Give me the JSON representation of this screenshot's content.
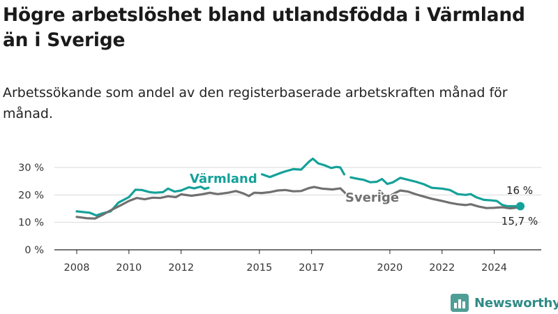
{
  "title": "Högre arbetslöshet bland utlandsfödda i Värmland än i Sverige",
  "subtitle": "Arbetssökande som andel av den registerbaserade arbetskraften månad för månad.",
  "brand": "Newsworthy",
  "colors": {
    "varmland": "#14a199",
    "sverige": "#707070",
    "grid": "#d9d9d9",
    "axis": "#222222"
  },
  "icons": {
    "brand": "bar-chart-logo-icon"
  },
  "chart_data": {
    "type": "line",
    "title": "Högre arbetslöshet bland utlandsfödda i Värmland än i Sverige",
    "subtitle": "Arbetssökande som andel av den registerbaserade arbetskraften månad för månad.",
    "xlabel": "",
    "ylabel": "",
    "x_ticks": [
      "2008",
      "2010",
      "2012",
      "2015",
      "2017",
      "2020",
      "2022",
      "2024"
    ],
    "y_ticks": [
      "0 %",
      "10 %",
      "20 %",
      "30 %"
    ],
    "ylim": [
      0,
      30
    ],
    "grid": true,
    "legend": "inline labels",
    "series": [
      {
        "name": "Värmland",
        "color": "#14a199",
        "end_label": "16 %",
        "points": [
          [
            2008.0,
            14.0
          ],
          [
            2008.5,
            13.5
          ],
          [
            2008.75,
            12.5
          ],
          [
            2009.0,
            13.3
          ],
          [
            2009.3,
            14.0
          ],
          [
            2009.6,
            17.2
          ],
          [
            2010.0,
            19.2
          ],
          [
            2010.25,
            21.9
          ],
          [
            2010.5,
            21.8
          ],
          [
            2010.8,
            21.0
          ],
          [
            2011.0,
            20.8
          ],
          [
            2011.3,
            21.0
          ],
          [
            2011.5,
            22.3
          ],
          [
            2011.75,
            21.2
          ],
          [
            2012.0,
            21.6
          ],
          [
            2012.3,
            22.8
          ],
          [
            2012.5,
            22.4
          ],
          [
            2012.75,
            23.0
          ],
          [
            2012.9,
            22.2
          ],
          [
            2013.05,
            22.6
          ]
        ],
        "points_2": [
          [
            2015.1,
            27.5
          ],
          [
            2015.4,
            26.5
          ],
          [
            2015.75,
            27.8
          ],
          [
            2016.0,
            28.6
          ],
          [
            2016.3,
            29.4
          ],
          [
            2016.6,
            29.2
          ],
          [
            2016.9,
            32.1
          ],
          [
            2017.05,
            33.2
          ],
          [
            2017.25,
            31.5
          ],
          [
            2017.5,
            30.8
          ],
          [
            2017.75,
            29.8
          ],
          [
            2017.95,
            30.2
          ],
          [
            2018.1,
            30.0
          ],
          [
            2018.25,
            27.5
          ]
        ],
        "points_3": [
          [
            2018.5,
            26.4
          ],
          [
            2018.8,
            25.8
          ],
          [
            2019.0,
            25.5
          ],
          [
            2019.25,
            24.6
          ],
          [
            2019.5,
            24.8
          ],
          [
            2019.7,
            25.8
          ],
          [
            2019.9,
            24.0
          ],
          [
            2020.1,
            24.5
          ],
          [
            2020.4,
            26.2
          ],
          [
            2020.7,
            25.5
          ],
          [
            2021.0,
            24.8
          ],
          [
            2021.3,
            23.9
          ],
          [
            2021.6,
            22.6
          ],
          [
            2022.0,
            22.3
          ],
          [
            2022.3,
            21.8
          ],
          [
            2022.6,
            20.3
          ],
          [
            2022.9,
            20.0
          ],
          [
            2023.1,
            20.3
          ],
          [
            2023.3,
            19.2
          ],
          [
            2023.6,
            18.2
          ],
          [
            2023.9,
            18.0
          ],
          [
            2024.1,
            17.8
          ],
          [
            2024.3,
            16.4
          ],
          [
            2024.5,
            15.9
          ],
          [
            2024.8,
            15.9
          ],
          [
            2025.0,
            15.9
          ]
        ]
      },
      {
        "name": "Sverige",
        "color": "#707070",
        "end_label": "15,7 %",
        "points": [
          [
            2008.0,
            12.0
          ],
          [
            2008.4,
            11.5
          ],
          [
            2008.7,
            11.4
          ],
          [
            2009.0,
            12.8
          ],
          [
            2009.3,
            14.4
          ],
          [
            2009.7,
            16.3
          ],
          [
            2010.0,
            17.8
          ],
          [
            2010.3,
            18.9
          ],
          [
            2010.6,
            18.4
          ],
          [
            2010.9,
            19.0
          ],
          [
            2011.2,
            18.9
          ],
          [
            2011.5,
            19.5
          ],
          [
            2011.8,
            19.2
          ],
          [
            2012.0,
            20.2
          ],
          [
            2012.4,
            19.7
          ],
          [
            2012.8,
            20.2
          ],
          [
            2013.1,
            20.8
          ],
          [
            2013.4,
            20.3
          ],
          [
            2013.8,
            20.8
          ],
          [
            2014.1,
            21.4
          ],
          [
            2014.4,
            20.5
          ],
          [
            2014.6,
            19.6
          ],
          [
            2014.8,
            20.8
          ],
          [
            2015.1,
            20.7
          ],
          [
            2015.4,
            21.0
          ],
          [
            2015.7,
            21.6
          ],
          [
            2016.0,
            21.8
          ],
          [
            2016.3,
            21.3
          ],
          [
            2016.6,
            21.4
          ],
          [
            2016.9,
            22.5
          ],
          [
            2017.1,
            22.9
          ],
          [
            2017.4,
            22.3
          ],
          [
            2017.8,
            22.0
          ],
          [
            2018.1,
            22.4
          ],
          [
            2018.3,
            20.6
          ]
        ],
        "points_2": [
          [
            2019.6,
            21.5
          ],
          [
            2019.8,
            19.6
          ],
          [
            2020.0,
            19.6
          ],
          [
            2020.2,
            20.7
          ],
          [
            2020.4,
            21.6
          ],
          [
            2020.7,
            21.2
          ],
          [
            2021.0,
            20.2
          ],
          [
            2021.3,
            19.4
          ],
          [
            2021.6,
            18.6
          ],
          [
            2022.0,
            17.8
          ],
          [
            2022.3,
            17.1
          ],
          [
            2022.6,
            16.6
          ],
          [
            2022.9,
            16.3
          ],
          [
            2023.1,
            16.6
          ],
          [
            2023.4,
            15.8
          ],
          [
            2023.7,
            15.2
          ],
          [
            2024.0,
            15.3
          ],
          [
            2024.3,
            15.5
          ],
          [
            2024.6,
            15.1
          ],
          [
            2024.9,
            15.4
          ],
          [
            2025.0,
            15.7
          ]
        ]
      }
    ]
  }
}
